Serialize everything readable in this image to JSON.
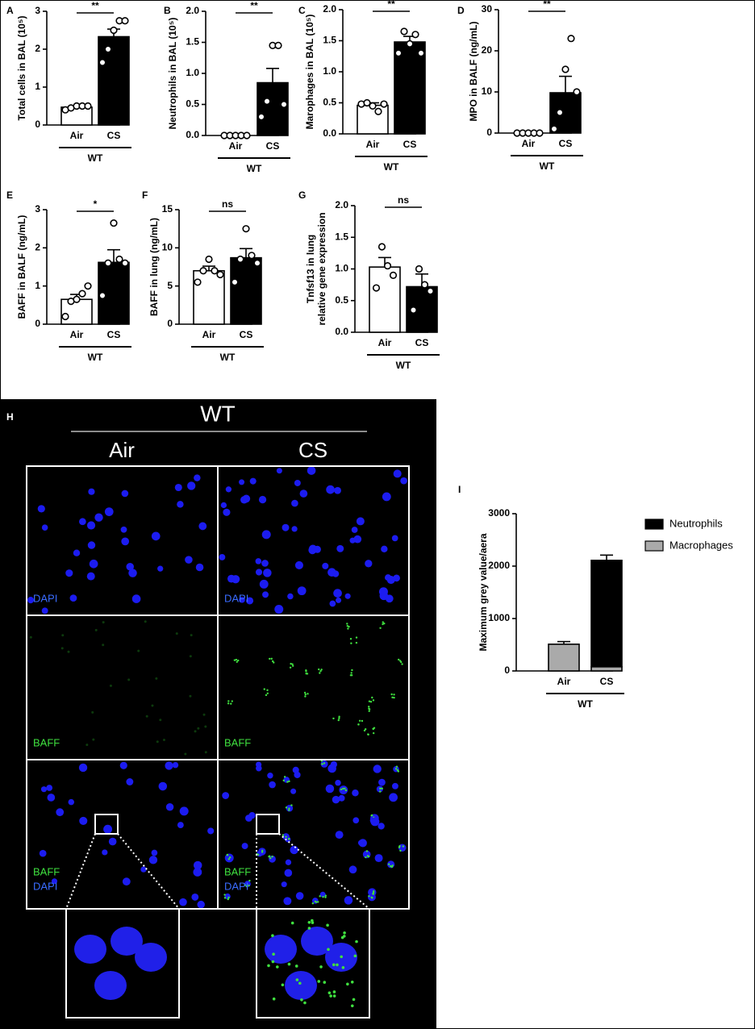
{
  "chart_data": [
    {
      "type": "bar",
      "panel": "A",
      "ylabel": [
        "Total cells in BAL (10⁵)"
      ],
      "categories": [
        "Air",
        "CS"
      ],
      "group": "WT",
      "colors": [
        "#ffffff",
        "#000000"
      ],
      "values": [
        0.47,
        2.33
      ],
      "errors": [
        0.04,
        0.2
      ],
      "points": [
        [
          0.4,
          0.45,
          0.5,
          0.5,
          0.5
        ],
        [
          1.65,
          2.0,
          2.5,
          2.75,
          2.75
        ]
      ],
      "ylim": [
        0,
        3
      ],
      "yticks": [
        0,
        1,
        2,
        3
      ],
      "significance": "**"
    },
    {
      "type": "bar",
      "panel": "B",
      "ylabel": [
        "Neutrophils in BAL (10⁵)"
      ],
      "categories": [
        "Air",
        "CS"
      ],
      "group": "WT",
      "colors": [
        "#ffffff",
        "#000000"
      ],
      "values": [
        0,
        0.85
      ],
      "errors": [
        0,
        0.23
      ],
      "points": [
        [
          0,
          0,
          0,
          0,
          0
        ],
        [
          0.3,
          0.55,
          1.45,
          1.45,
          0.5
        ]
      ],
      "ylim": [
        0,
        2
      ],
      "yticks": [
        {
          "value": 0,
          "label": "0.0"
        },
        {
          "value": 0.5,
          "label": "0.5"
        },
        {
          "value": 1,
          "label": "1.0"
        },
        {
          "value": 1.5,
          "label": "1.5"
        },
        {
          "value": 2,
          "label": "2.0"
        }
      ],
      "significance": "**"
    },
    {
      "type": "bar",
      "panel": "C",
      "ylabel": [
        "Marophages in BAL (10⁵)"
      ],
      "categories": [
        "Air",
        "CS"
      ],
      "group": "WT",
      "colors": [
        "#ffffff",
        "#000000"
      ],
      "values": [
        0.46,
        1.48
      ],
      "errors": [
        0.04,
        0.09
      ],
      "points": [
        [
          0.48,
          0.5,
          0.45,
          0.36,
          0.48
        ],
        [
          1.3,
          1.65,
          1.45,
          1.6,
          1.3
        ]
      ],
      "ylim": [
        0,
        2
      ],
      "yticks": [
        {
          "value": 0,
          "label": "0.0"
        },
        {
          "value": 0.5,
          "label": "0.5"
        },
        {
          "value": 1,
          "label": "1.0"
        },
        {
          "value": 1.5,
          "label": "1.5"
        },
        {
          "value": 2,
          "label": "2.0"
        }
      ],
      "significance": "**"
    },
    {
      "type": "bar",
      "panel": "D",
      "ylabel": [
        "MPO in BALF (ng/mL)"
      ],
      "categories": [
        "Air",
        "CS"
      ],
      "group": "WT",
      "colors": [
        "#ffffff",
        "#000000"
      ],
      "values": [
        0,
        9.8
      ],
      "errors": [
        0,
        4
      ],
      "points": [
        [
          0,
          0,
          0,
          0,
          0
        ],
        [
          1,
          5,
          15.5,
          23,
          10
        ]
      ],
      "ylim": [
        0,
        30
      ],
      "yticks": [
        0,
        10,
        20,
        30
      ],
      "significance": "**"
    },
    {
      "type": "bar",
      "panel": "E",
      "ylabel": [
        "BAFF in BALF (ng/mL)"
      ],
      "categories": [
        "Air",
        "CS"
      ],
      "group": "WT",
      "colors": [
        "#ffffff",
        "#000000"
      ],
      "values": [
        0.65,
        1.62
      ],
      "errors": [
        0.13,
        0.33
      ],
      "points": [
        [
          0.2,
          0.6,
          0.65,
          0.8,
          1.0
        ],
        [
          0.75,
          1.6,
          2.65,
          1.7,
          1.6
        ]
      ],
      "ylim": [
        0,
        3
      ],
      "yticks": [
        0,
        1,
        2,
        3
      ],
      "significance": "*"
    },
    {
      "type": "bar",
      "panel": "F",
      "ylabel": [
        "BAFF in lung (ng/mL)"
      ],
      "categories": [
        "Air",
        "CS"
      ],
      "group": "WT",
      "colors": [
        "#ffffff",
        "#000000"
      ],
      "values": [
        7.0,
        8.7
      ],
      "errors": [
        0.6,
        1.2
      ],
      "points": [
        [
          5.5,
          7,
          8.5,
          7,
          6.5
        ],
        [
          5.5,
          8.5,
          12.5,
          9,
          8
        ]
      ],
      "ylim": [
        0,
        15
      ],
      "yticks": [
        0,
        5,
        10,
        15
      ],
      "significance": "ns"
    },
    {
      "type": "bar",
      "panel": "G",
      "ylabel": [
        "Tnfsf13 in lung",
        "relative gene expression"
      ],
      "categories": [
        "Air",
        "CS"
      ],
      "group": "WT",
      "colors": [
        "#ffffff",
        "#000000"
      ],
      "values": [
        1.03,
        0.72
      ],
      "errors": [
        0.15,
        0.2
      ],
      "points": [
        [
          0.7,
          1.35,
          1.05,
          0.9
        ],
        [
          0.35,
          1.0,
          0.75,
          0.65
        ]
      ],
      "ylim": [
        0,
        2
      ],
      "yticks": [
        {
          "value": 0,
          "label": "0.0"
        },
        {
          "value": 0.5,
          "label": "0.5"
        },
        {
          "value": 1,
          "label": "1.0"
        },
        {
          "value": 1.5,
          "label": "1.5"
        },
        {
          "value": 2,
          "label": "2.0"
        }
      ],
      "significance": "ns"
    },
    {
      "type": "stacked_bar",
      "panel": "I",
      "ylabel": [
        "Maximum grey value/aera"
      ],
      "categories": [
        "Air",
        "CS"
      ],
      "group": "WT",
      "series": [
        {
          "name": "Macrophages",
          "color": "#aaaaaa",
          "values": [
            510,
            80
          ]
        },
        {
          "name": "Neutrophils",
          "color": "#000000",
          "values": [
            0,
            2030
          ],
          "errors": [
            50,
            100
          ]
        }
      ],
      "ylim": [
        0,
        3000
      ],
      "yticks": [
        0,
        1000,
        2000,
        3000
      ],
      "legend": "upper right"
    }
  ],
  "image_panel": {
    "panel": "H",
    "group": "WT",
    "columns": [
      "Air",
      "CS"
    ],
    "rows": [
      "DAPI",
      "BAFF",
      [
        "BAFF",
        "DAPI"
      ]
    ]
  }
}
